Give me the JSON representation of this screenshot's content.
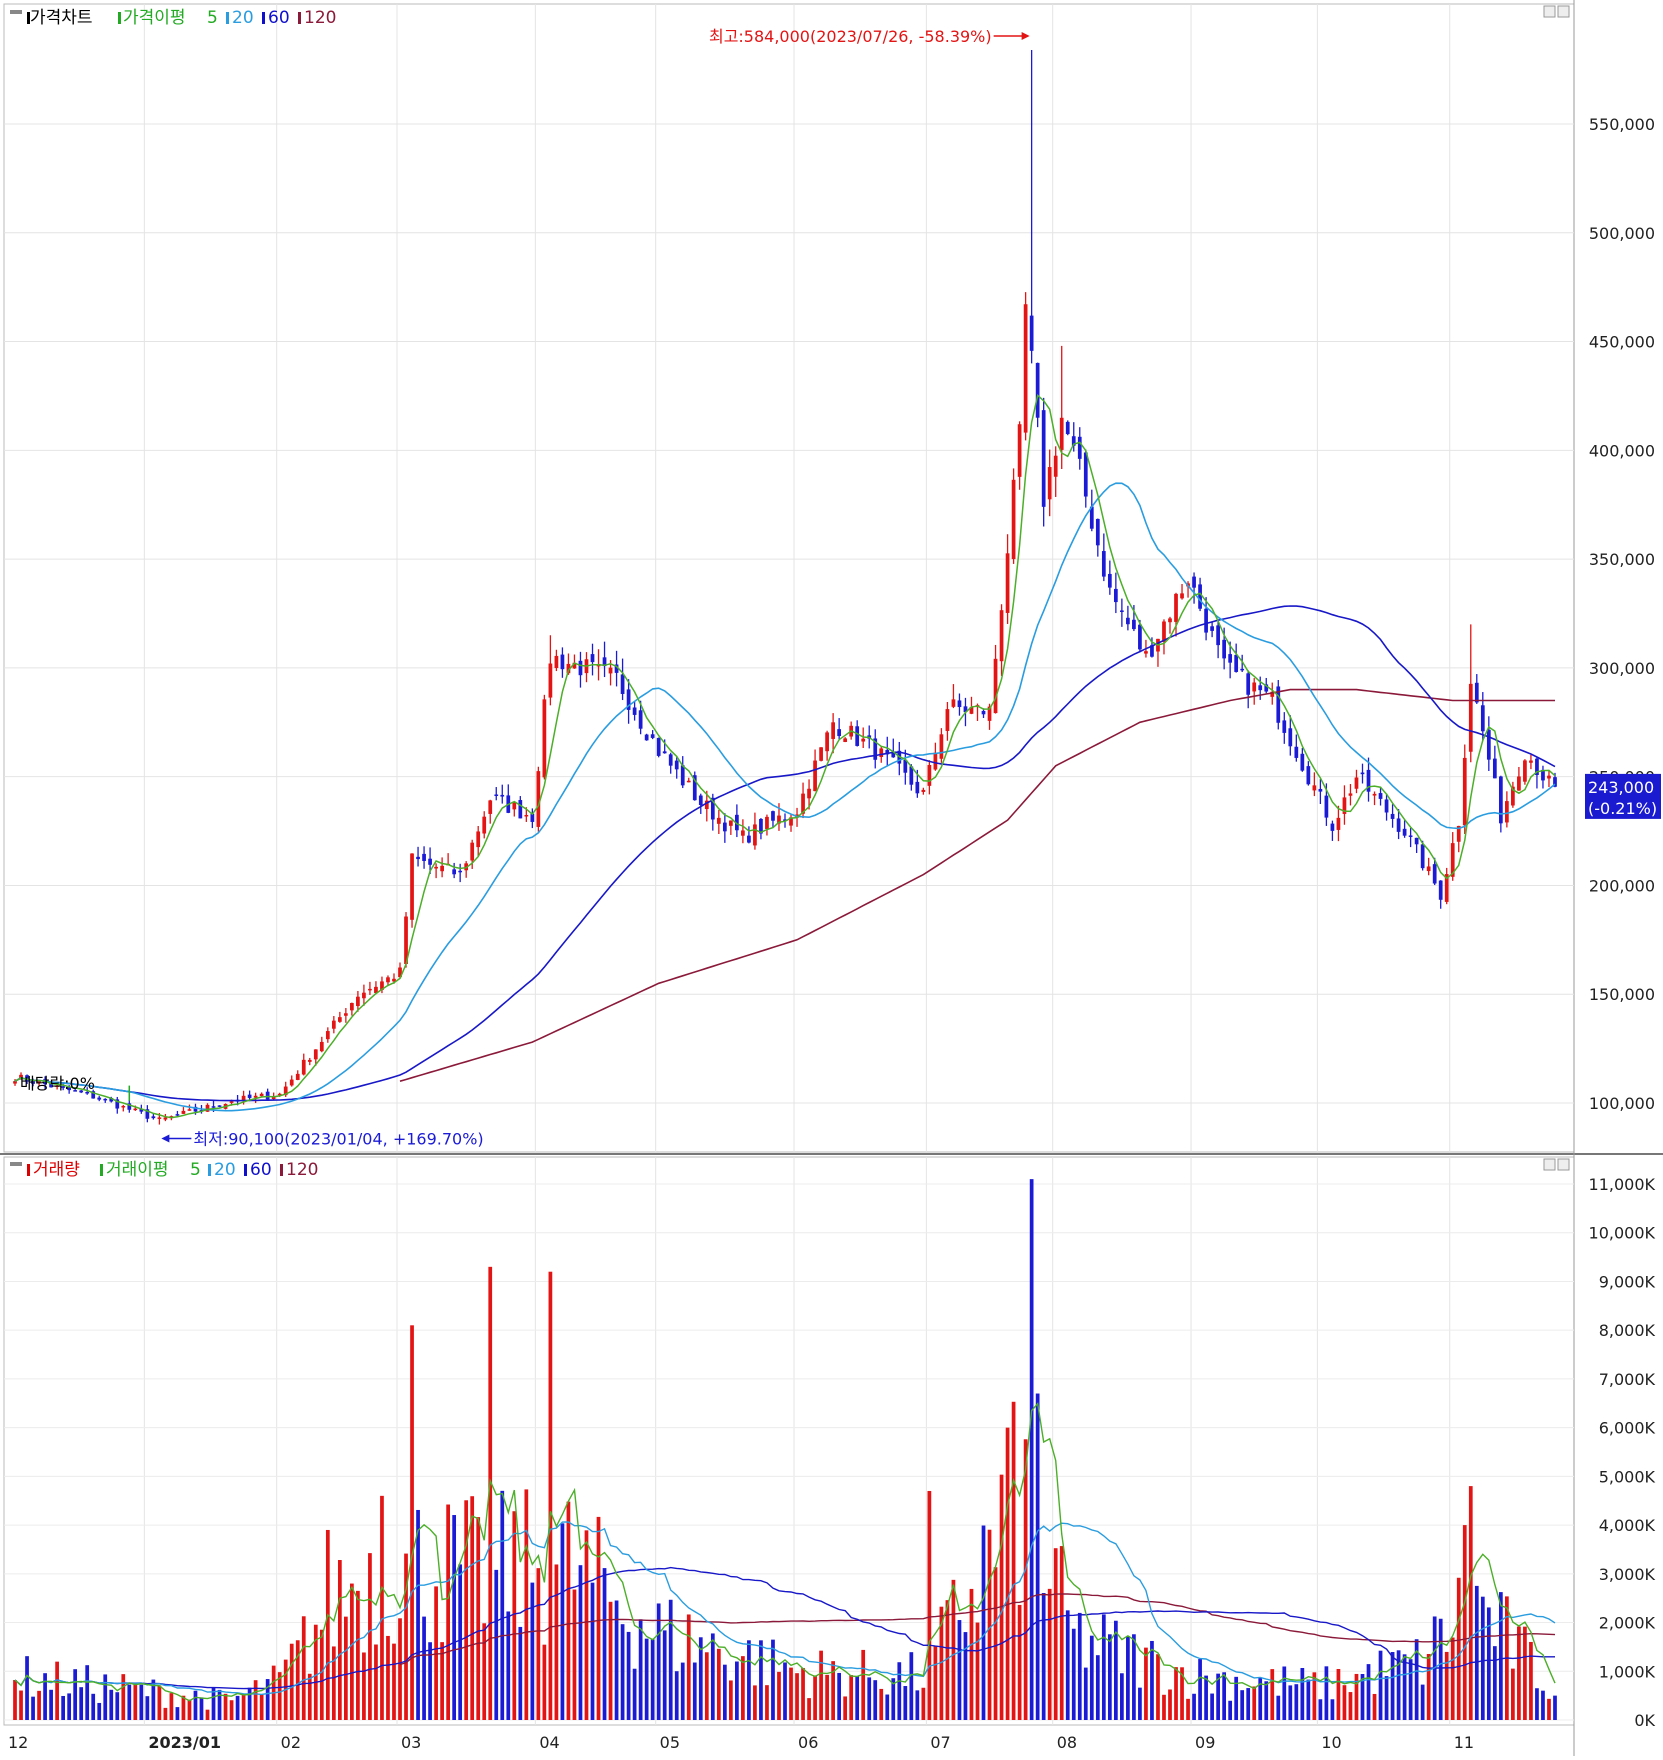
{
  "price_panel": {
    "legend": [
      {
        "label": "가격차트",
        "color": "#000000"
      },
      {
        "label": "가격이평",
        "color": "#22aa22"
      },
      {
        "label": "5",
        "color": "#22aa22"
      },
      {
        "label": "20",
        "color": "#2a9de0"
      },
      {
        "label": "60",
        "color": "#1010cc"
      },
      {
        "label": "120",
        "color": "#8b1a3a"
      }
    ],
    "high_annotation": "최고:584,000(2023/07/26, -58.39%)",
    "low_annotation": "최저:90,100(2023/01/04, +169.70%)",
    "dividend_annotation": "배당락:0%",
    "current_price": "243,000",
    "current_change": "(-0.21%)"
  },
  "volume_panel": {
    "legend": [
      {
        "label": "거래량",
        "color": "#dd0000"
      },
      {
        "label": "거래이평",
        "color": "#22aa22"
      },
      {
        "label": "5",
        "color": "#22aa22"
      },
      {
        "label": "20",
        "color": "#2a9de0"
      },
      {
        "label": "60",
        "color": "#1010cc"
      },
      {
        "label": "120",
        "color": "#8b1a3a"
      }
    ]
  },
  "colors": {
    "up": "#e31414",
    "down": "#1b1bd6",
    "ma5": "#4caf28",
    "ma20": "#2a9de0",
    "ma60": "#1818c8",
    "ma120": "#8b1a3a",
    "price_box": "#1a1ad0"
  },
  "chart_data": [
    {
      "type": "candlestick",
      "title": "가격차트",
      "ylim": [
        80000,
        600000
      ],
      "y_ticks": [
        "100,000",
        "150,000",
        "200,000",
        "250,000",
        "300,000",
        "350,000",
        "400,000",
        "450,000",
        "500,000",
        "550,000"
      ],
      "y_tick_values": [
        100000,
        150000,
        200000,
        250000,
        300000,
        350000,
        400000,
        450000,
        500000,
        550000
      ],
      "x_ticks": [
        "12",
        "2023/01",
        "02",
        "03",
        "04",
        "05",
        "06",
        "07",
        "08",
        "09",
        "10",
        "11"
      ],
      "close_anchors": [
        {
          "date": "2022-12-01",
          "close": 112000
        },
        {
          "date": "2022-12-20",
          "close": 103000
        },
        {
          "date": "2023-01-04",
          "close": 92000
        },
        {
          "date": "2023-01-20",
          "close": 101000
        },
        {
          "date": "2023-02-01",
          "close": 104000
        },
        {
          "date": "2023-02-20",
          "close": 150000
        },
        {
          "date": "2023-03-01",
          "close": 160000
        },
        {
          "date": "2023-03-03",
          "close": 212000
        },
        {
          "date": "2023-03-15",
          "close": 205000
        },
        {
          "date": "2023-03-22",
          "close": 240000
        },
        {
          "date": "2023-03-31",
          "close": 232000
        },
        {
          "date": "2023-04-05",
          "close": 305000
        },
        {
          "date": "2023-04-20",
          "close": 295000
        },
        {
          "date": "2023-05-01",
          "close": 262000
        },
        {
          "date": "2023-05-10",
          "close": 238000
        },
        {
          "date": "2023-05-20",
          "close": 222000
        },
        {
          "date": "2023-06-01",
          "close": 235000
        },
        {
          "date": "2023-06-10",
          "close": 275000
        },
        {
          "date": "2023-06-20",
          "close": 262000
        },
        {
          "date": "2023-06-30",
          "close": 242000
        },
        {
          "date": "2023-07-06",
          "close": 282000
        },
        {
          "date": "2023-07-17",
          "close": 280000
        },
        {
          "date": "2023-07-20",
          "close": 355000
        },
        {
          "date": "2023-07-24",
          "close": 405000
        },
        {
          "date": "2023-07-25",
          "close": 465000
        },
        {
          "date": "2023-07-26",
          "close": 440000
        },
        {
          "date": "2023-07-28",
          "close": 378000
        },
        {
          "date": "2023-08-02",
          "close": 415000
        },
        {
          "date": "2023-08-07",
          "close": 390000
        },
        {
          "date": "2023-08-14",
          "close": 335000
        },
        {
          "date": "2023-08-22",
          "close": 305000
        },
        {
          "date": "2023-08-31",
          "close": 342000
        },
        {
          "date": "2023-09-08",
          "close": 300000
        },
        {
          "date": "2023-09-20",
          "close": 285000
        },
        {
          "date": "2023-10-04",
          "close": 228000
        },
        {
          "date": "2023-10-10",
          "close": 250000
        },
        {
          "date": "2023-10-20",
          "close": 225000
        },
        {
          "date": "2023-10-30",
          "close": 196000
        },
        {
          "date": "2023-11-02",
          "close": 230000
        },
        {
          "date": "2023-11-06",
          "close": 295000
        },
        {
          "date": "2023-11-09",
          "close": 258000
        },
        {
          "date": "2023-11-13",
          "close": 232000
        },
        {
          "date": "2023-11-17",
          "close": 262000
        },
        {
          "date": "2023-11-24",
          "close": 243000
        }
      ],
      "spikes": [
        {
          "date": "2023-07-26",
          "high": 584000
        },
        {
          "date": "2023-01-04",
          "low": 90100
        },
        {
          "date": "2023-11-06",
          "high": 320000
        },
        {
          "date": "2023-04-05",
          "high": 315000
        },
        {
          "date": "2023-08-02",
          "high": 448000
        }
      ],
      "ma120_anchors": [
        {
          "date": "2023-03-01",
          "value": 110000
        },
        {
          "date": "2023-04-01",
          "value": 128000
        },
        {
          "date": "2023-05-01",
          "value": 155000
        },
        {
          "date": "2023-06-01",
          "value": 175000
        },
        {
          "date": "2023-07-01",
          "value": 205000
        },
        {
          "date": "2023-07-20",
          "value": 230000
        },
        {
          "date": "2023-08-01",
          "value": 255000
        },
        {
          "date": "2023-08-20",
          "value": 275000
        },
        {
          "date": "2023-09-10",
          "value": 285000
        },
        {
          "date": "2023-09-25",
          "value": 290000
        },
        {
          "date": "2023-10-10",
          "value": 290000
        },
        {
          "date": "2023-11-01",
          "value": 285000
        },
        {
          "date": "2023-11-24",
          "value": 285000
        }
      ]
    },
    {
      "type": "bar",
      "title": "거래량",
      "ylim": [
        0,
        11000
      ],
      "y_ticks": [
        "0K",
        "1,000K",
        "2,000K",
        "3,000K",
        "4,000K",
        "5,000K",
        "6,000K",
        "7,000K",
        "8,000K",
        "9,000K",
        "10,000K",
        "11,000K"
      ],
      "y_tick_values": [
        0,
        1000,
        2000,
        3000,
        4000,
        5000,
        6000,
        7000,
        8000,
        9000,
        10000,
        11000
      ],
      "unit": "K",
      "volume_anchors": [
        {
          "date": "2022-12-01",
          "value": 900
        },
        {
          "date": "2023-01-20",
          "value": 400
        },
        {
          "date": "2023-02-01",
          "value": 800
        },
        {
          "date": "2023-02-15",
          "value": 2600
        },
        {
          "date": "2023-03-01",
          "value": 3200
        },
        {
          "date": "2023-03-20",
          "value": 3000
        },
        {
          "date": "2023-04-10",
          "value": 3200
        },
        {
          "date": "2023-05-01",
          "value": 1800
        },
        {
          "date": "2023-06-01",
          "value": 1000
        },
        {
          "date": "2023-07-01",
          "value": 900
        },
        {
          "date": "2023-07-24",
          "value": 4500
        },
        {
          "date": "2023-08-05",
          "value": 1700
        },
        {
          "date": "2023-09-01",
          "value": 900
        },
        {
          "date": "2023-10-01",
          "value": 700
        },
        {
          "date": "2023-10-25",
          "value": 1200
        },
        {
          "date": "2023-11-06",
          "value": 2500
        },
        {
          "date": "2023-11-24",
          "value": 600
        }
      ],
      "spikes": [
        {
          "date": "2023-03-03",
          "value": 8100
        },
        {
          "date": "2023-03-22",
          "value": 9300
        },
        {
          "date": "2023-04-05",
          "value": 9200
        },
        {
          "date": "2023-07-26",
          "value": 11100
        },
        {
          "date": "2023-07-27",
          "value": 6700
        },
        {
          "date": "2023-07-20",
          "value": 6000
        },
        {
          "date": "2023-07-03",
          "value": 4700
        },
        {
          "date": "2023-11-06",
          "value": 4800
        },
        {
          "date": "2023-11-03",
          "value": 4000
        },
        {
          "date": "2023-02-13",
          "value": 3900
        },
        {
          "date": "2023-02-24",
          "value": 4600
        }
      ]
    }
  ]
}
